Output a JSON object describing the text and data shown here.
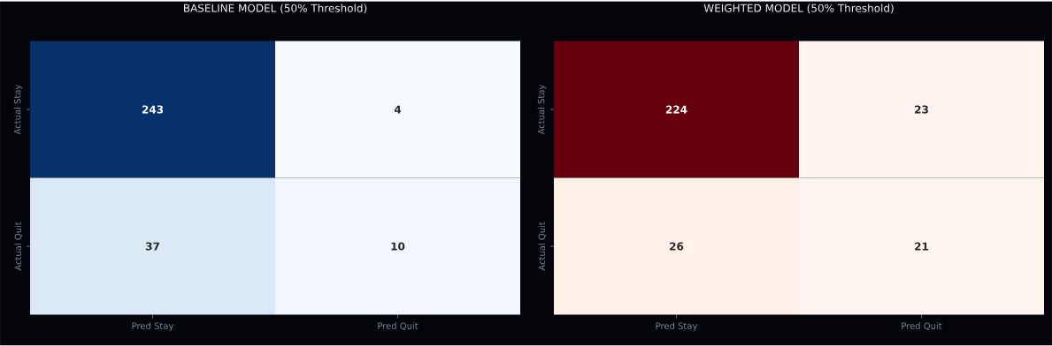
{
  "chart_data": [
    {
      "type": "heatmap",
      "title": "BASELINE MODEL (50% Threshold)",
      "categories": [
        "Pred Stay",
        "Pred Quit"
      ],
      "y_categories": [
        "Actual Stay",
        "Actual Quit"
      ],
      "cells": [
        [
          243,
          4
        ],
        [
          37,
          10
        ]
      ],
      "colors": [
        "#08306b",
        "#f7fbff",
        "#dbe9f6",
        "#f1f7fd"
      ],
      "data_labels": true
    },
    {
      "type": "heatmap",
      "title": "WEIGHTED MODEL (50% Threshold)",
      "categories": [
        "Pred Stay",
        "Pred Quit"
      ],
      "y_categories": [
        "Actual Stay",
        "Actual Quit"
      ],
      "cells": [
        [
          224,
          23
        ],
        [
          26,
          21
        ]
      ],
      "colors": [
        "#67000d",
        "#fff4ef",
        "#fff0e8",
        "#fff5f0"
      ],
      "data_labels": true
    }
  ]
}
